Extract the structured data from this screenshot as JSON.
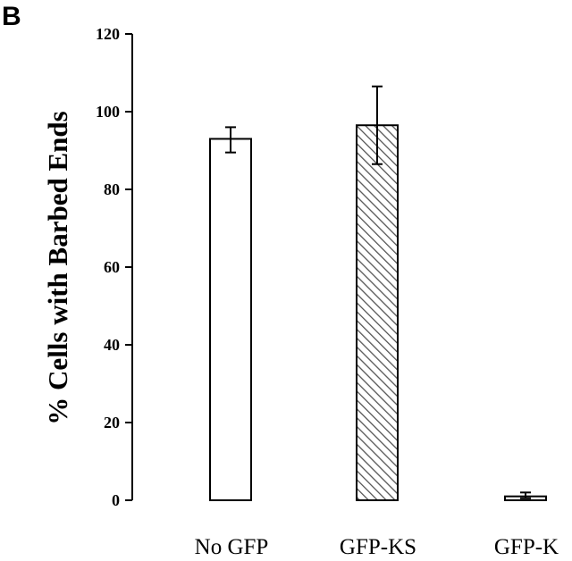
{
  "figure": {
    "panel_label": "B"
  },
  "chart_data": {
    "type": "bar",
    "title": "",
    "xlabel": "",
    "ylabel": "% Cells with Barbed Ends",
    "ylim": [
      0,
      120
    ],
    "yticks": [
      0,
      20,
      40,
      60,
      80,
      100,
      120
    ],
    "grid": false,
    "legend": "none",
    "categories": [
      "No GFP",
      "GFP-KS",
      "GFP-K"
    ],
    "series": [
      {
        "values": [
          93,
          96.5,
          1
        ],
        "error_upper": [
          96,
          106.5,
          2
        ],
        "error_lower": [
          89.5,
          86.5,
          0.5
        ],
        "fills": [
          "white",
          "hatched",
          "white"
        ]
      }
    ],
    "colors": {
      "bar_stroke": "#000000",
      "hatch": "#555555",
      "background": "#ffffff"
    }
  }
}
